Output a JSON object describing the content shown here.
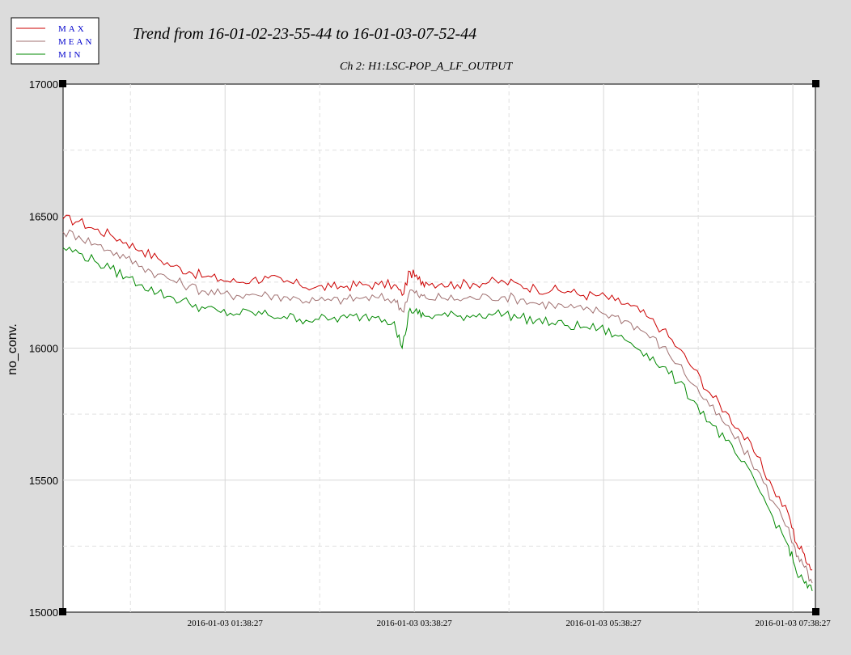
{
  "chart_data": {
    "type": "line",
    "title": "Trend from 16-01-02-23-55-44 to 16-01-03-07-52-44",
    "subtitle": "Ch 2: H1:LSC-POP_A_LF_OUTPUT",
    "ylabel": "no_conv.",
    "ylim": [
      15000,
      17000
    ],
    "y_ticks": [
      "15000",
      "15500",
      "16000",
      "16500",
      "17000"
    ],
    "x_tick_labels": [
      "2016-01-03 01:38:27",
      "2016-01-03 03:38:27",
      "2016-01-03 05:38:27",
      "2016-01-03 07:38:27"
    ],
    "x_unit": "minutes since 2016-01-02 23:55:44",
    "x_range": [
      0,
      477
    ],
    "x_tick_minutes": [
      102.7,
      222.7,
      342.7,
      462.7
    ],
    "grid": true,
    "legend_position": "top-left",
    "series": [
      {
        "name": "MAX",
        "color": "#cc0000",
        "x": [
          0,
          10,
          20,
          30,
          40,
          50,
          60,
          70,
          80,
          90,
          100,
          110,
          120,
          130,
          140,
          150,
          160,
          170,
          180,
          190,
          200,
          210,
          215,
          220,
          225,
          230,
          240,
          250,
          260,
          270,
          280,
          290,
          300,
          310,
          320,
          330,
          340,
          350,
          360,
          370,
          380,
          390,
          400,
          410,
          420,
          430,
          440,
          450,
          460,
          465,
          470,
          475
        ],
        "values": [
          16490,
          16480,
          16450,
          16430,
          16400,
          16370,
          16340,
          16310,
          16290,
          16270,
          16260,
          16250,
          16260,
          16265,
          16250,
          16240,
          16230,
          16230,
          16235,
          16240,
          16240,
          16240,
          16200,
          16290,
          16260,
          16250,
          16245,
          16240,
          16245,
          16250,
          16250,
          16240,
          16225,
          16220,
          16215,
          16200,
          16200,
          16180,
          16160,
          16120,
          16070,
          16000,
          15920,
          15830,
          15760,
          15680,
          15590,
          15470,
          15370,
          15260,
          15220,
          15160
        ]
      },
      {
        "name": "MEAN",
        "color": "#a07070",
        "x": [
          0,
          10,
          20,
          30,
          40,
          50,
          60,
          70,
          80,
          90,
          100,
          110,
          120,
          130,
          140,
          150,
          160,
          170,
          180,
          190,
          200,
          210,
          215,
          220,
          225,
          230,
          240,
          250,
          260,
          270,
          280,
          290,
          300,
          310,
          320,
          330,
          340,
          350,
          360,
          370,
          380,
          390,
          400,
          410,
          420,
          430,
          440,
          450,
          460,
          465,
          470,
          475
        ],
        "values": [
          16440,
          16425,
          16395,
          16370,
          16340,
          16310,
          16280,
          16255,
          16235,
          16215,
          16205,
          16200,
          16205,
          16200,
          16195,
          16185,
          16180,
          16180,
          16185,
          16190,
          16190,
          16185,
          16140,
          16220,
          16200,
          16190,
          16190,
          16185,
          16190,
          16195,
          16195,
          16185,
          16170,
          16165,
          16155,
          16145,
          16140,
          16120,
          16095,
          16055,
          16005,
          15940,
          15860,
          15780,
          15710,
          15630,
          15540,
          15420,
          15320,
          15210,
          15170,
          15110
        ]
      },
      {
        "name": "MIN",
        "color": "#008800",
        "x": [
          0,
          10,
          20,
          30,
          40,
          50,
          60,
          70,
          80,
          90,
          100,
          110,
          120,
          130,
          140,
          150,
          160,
          170,
          180,
          190,
          200,
          210,
          215,
          220,
          225,
          230,
          240,
          250,
          260,
          270,
          280,
          290,
          300,
          310,
          320,
          330,
          340,
          350,
          360,
          370,
          380,
          390,
          400,
          410,
          420,
          430,
          440,
          450,
          460,
          465,
          470,
          475
        ],
        "values": [
          16380,
          16360,
          16330,
          16300,
          16270,
          16240,
          16210,
          16190,
          16170,
          16150,
          16135,
          16130,
          16135,
          16125,
          16120,
          16110,
          16110,
          16110,
          16115,
          16120,
          16120,
          16100,
          16000,
          16150,
          16130,
          16120,
          16125,
          16120,
          16125,
          16130,
          16130,
          16115,
          16105,
          16095,
          16085,
          16080,
          16075,
          16050,
          16020,
          15980,
          15930,
          15870,
          15800,
          15720,
          15650,
          15570,
          15480,
          15360,
          15250,
          15150,
          15110,
          15080
        ]
      }
    ]
  }
}
